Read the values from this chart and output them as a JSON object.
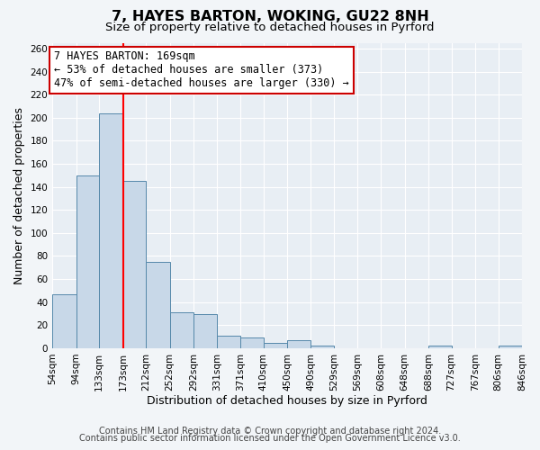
{
  "title": "7, HAYES BARTON, WOKING, GU22 8NH",
  "subtitle": "Size of property relative to detached houses in Pyrford",
  "xlabel": "Distribution of detached houses by size in Pyrford",
  "ylabel": "Number of detached properties",
  "bin_edges": [
    54,
    94,
    133,
    173,
    212,
    252,
    292,
    331,
    371,
    410,
    450,
    490,
    529,
    569,
    608,
    648,
    688,
    727,
    767,
    806,
    846
  ],
  "bin_labels": [
    "54sqm",
    "94sqm",
    "133sqm",
    "173sqm",
    "212sqm",
    "252sqm",
    "292sqm",
    "331sqm",
    "371sqm",
    "410sqm",
    "450sqm",
    "490sqm",
    "529sqm",
    "569sqm",
    "608sqm",
    "648sqm",
    "688sqm",
    "727sqm",
    "767sqm",
    "806sqm",
    "846sqm"
  ],
  "bar_heights": [
    47,
    150,
    204,
    145,
    75,
    31,
    30,
    11,
    9,
    5,
    7,
    2,
    0,
    0,
    0,
    0,
    2,
    0,
    0,
    2
  ],
  "bar_color": "#c8d8e8",
  "bar_edge_color": "#5588aa",
  "red_line_x": 173,
  "ylim": [
    0,
    265
  ],
  "yticks": [
    0,
    20,
    40,
    60,
    80,
    100,
    120,
    140,
    160,
    180,
    200,
    220,
    240,
    260
  ],
  "annotation_text": "7 HAYES BARTON: 169sqm\n← 53% of detached houses are smaller (373)\n47% of semi-detached houses are larger (330) →",
  "annotation_box_facecolor": "#ffffff",
  "annotation_box_edgecolor": "#cc0000",
  "footnote1": "Contains HM Land Registry data © Crown copyright and database right 2024.",
  "footnote2": "Contains public sector information licensed under the Open Government Licence v3.0.",
  "background_color": "#f2f5f8",
  "plot_bg_color": "#e8eef4",
  "grid_color": "#ffffff",
  "title_fontsize": 11.5,
  "subtitle_fontsize": 9.5,
  "footnote_fontsize": 7,
  "axis_label_fontsize": 9,
  "tick_fontsize": 7.5,
  "annotation_fontsize": 8.5
}
